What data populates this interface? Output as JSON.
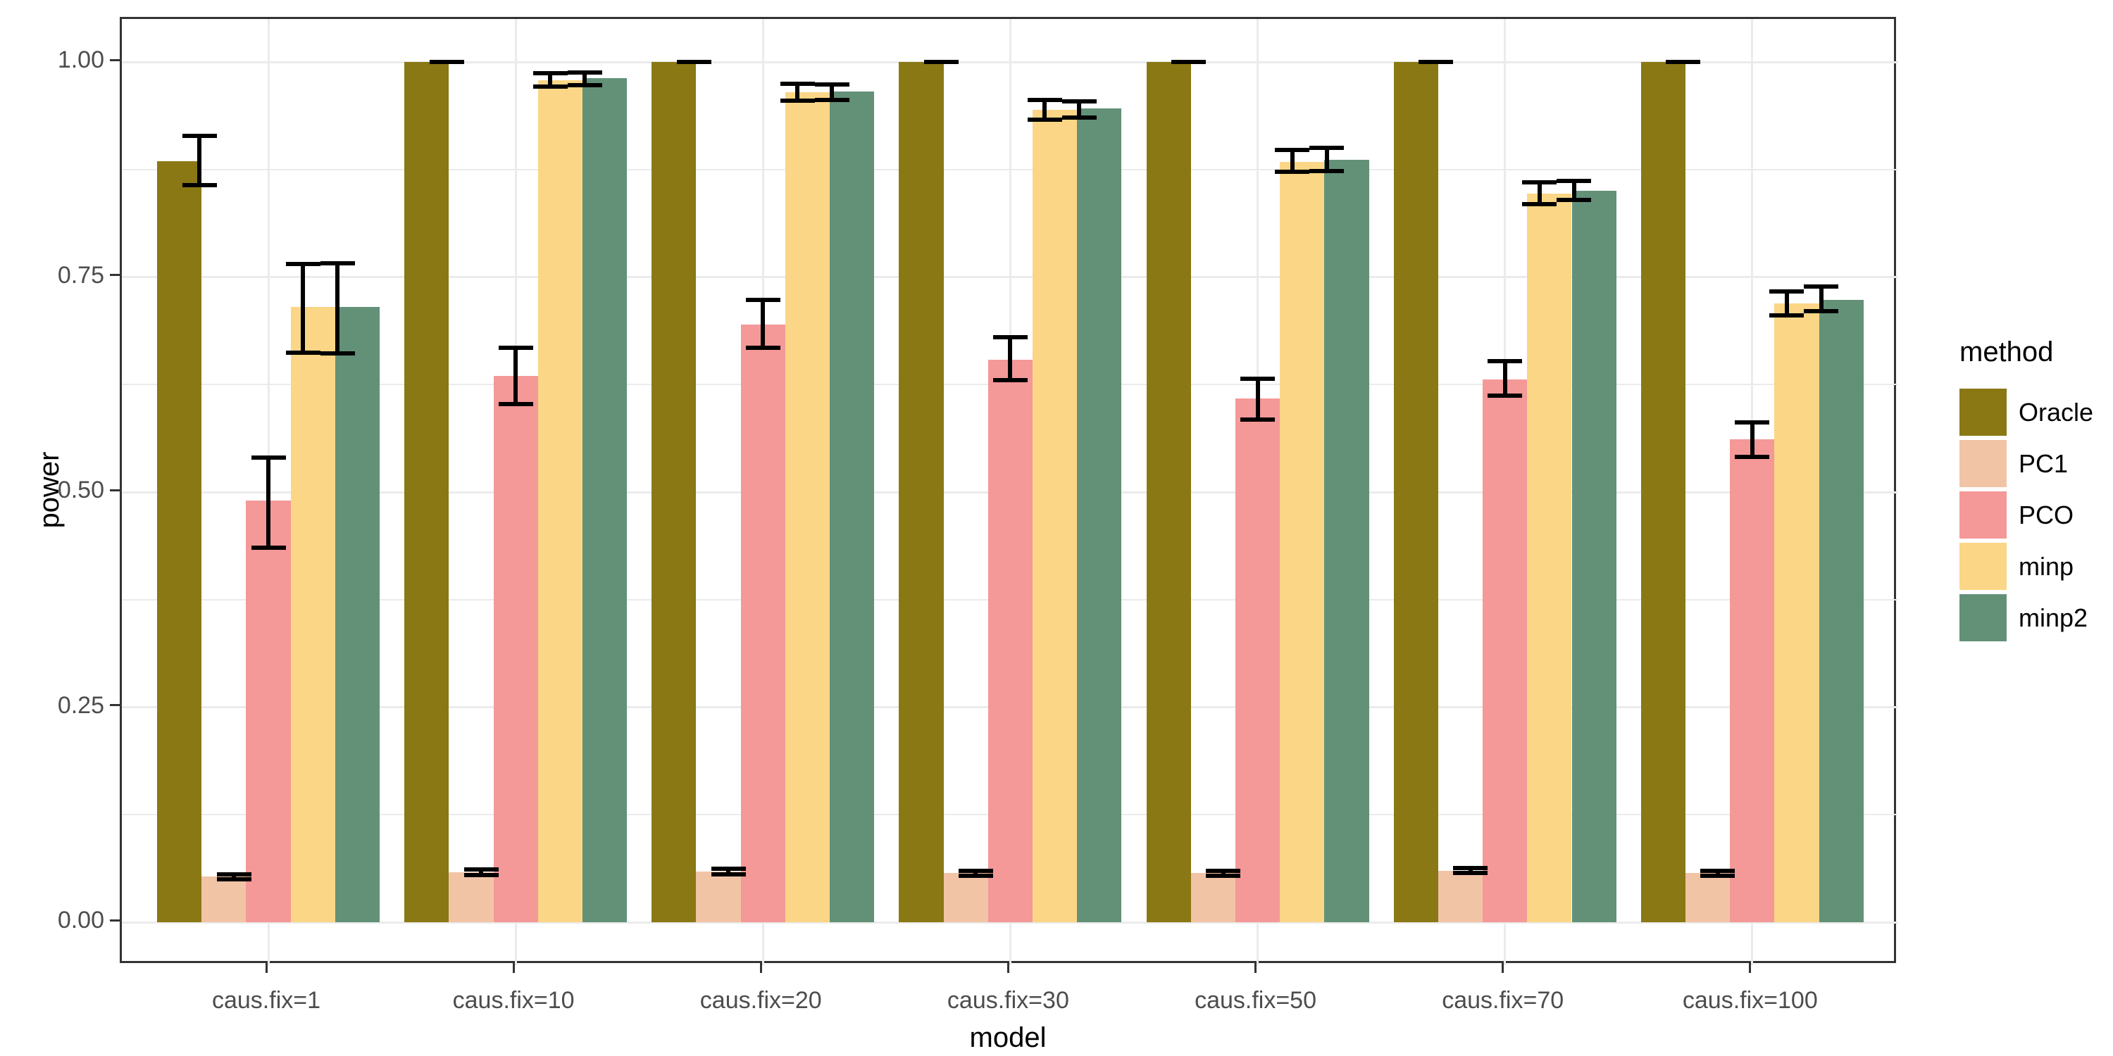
{
  "chart_data": {
    "type": "bar",
    "title": "",
    "xlabel": "model",
    "ylabel": "power",
    "legend_title": "method",
    "legend_position": "right",
    "grid": "major+minor",
    "ylim": [
      0,
      1
    ],
    "yticks": [
      0.0,
      0.25,
      0.5,
      0.75,
      1.0
    ],
    "ytick_labels": [
      "0.00",
      "0.25",
      "0.50",
      "0.75",
      "1.00"
    ],
    "minor_gridlines": [
      0.125,
      0.375,
      0.625,
      0.875
    ],
    "categories": [
      "caus.fix=1",
      "caus.fix=10",
      "caus.fix=20",
      "caus.fix=30",
      "caus.fix=50",
      "caus.fix=70",
      "caus.fix=100"
    ],
    "series": [
      {
        "name": "Oracle",
        "color": "#8A7815",
        "values": [
          0.885,
          1.0,
          1.0,
          1.0,
          1.0,
          1.0,
          1.0
        ],
        "err_low": [
          0.857,
          1.0,
          1.0,
          1.0,
          1.0,
          1.0,
          1.0
        ],
        "err_high": [
          0.914,
          1.0,
          1.0,
          1.0,
          1.0,
          1.0,
          1.0
        ]
      },
      {
        "name": "PC1",
        "color": "#F2C4A6",
        "values": [
          0.053,
          0.058,
          0.059,
          0.057,
          0.057,
          0.06,
          0.057
        ],
        "err_low": [
          0.05,
          0.055,
          0.056,
          0.054,
          0.054,
          0.057,
          0.054
        ],
        "err_high": [
          0.056,
          0.061,
          0.062,
          0.06,
          0.06,
          0.063,
          0.06
        ]
      },
      {
        "name": "PCO",
        "color": "#F49898",
        "values": [
          0.49,
          0.635,
          0.695,
          0.654,
          0.609,
          0.631,
          0.561
        ],
        "err_low": [
          0.435,
          0.602,
          0.668,
          0.63,
          0.584,
          0.612,
          0.541
        ],
        "err_high": [
          0.54,
          0.668,
          0.723,
          0.68,
          0.632,
          0.652,
          0.581
        ]
      },
      {
        "name": "minp",
        "color": "#FBD686",
        "values": [
          0.715,
          0.979,
          0.965,
          0.944,
          0.884,
          0.847,
          0.719
        ],
        "err_low": [
          0.662,
          0.971,
          0.955,
          0.933,
          0.872,
          0.835,
          0.705
        ],
        "err_high": [
          0.765,
          0.987,
          0.975,
          0.956,
          0.898,
          0.86,
          0.733
        ]
      },
      {
        "name": "minp2",
        "color": "#629178",
        "values": [
          0.715,
          0.981,
          0.966,
          0.946,
          0.886,
          0.85,
          0.723
        ],
        "err_low": [
          0.661,
          0.973,
          0.956,
          0.935,
          0.873,
          0.84,
          0.71
        ],
        "err_high": [
          0.766,
          0.988,
          0.974,
          0.954,
          0.9,
          0.862,
          0.739
        ]
      }
    ]
  },
  "colors": {
    "background": "#FFFFFF",
    "panel_background": "#FFFFFF",
    "panel_border": "#333333",
    "gridline": "#EBEBEB",
    "tick_mark": "#333333",
    "tick_label": "#4D4D4D",
    "axis_title": "#000000",
    "error_bar": "#000000"
  }
}
